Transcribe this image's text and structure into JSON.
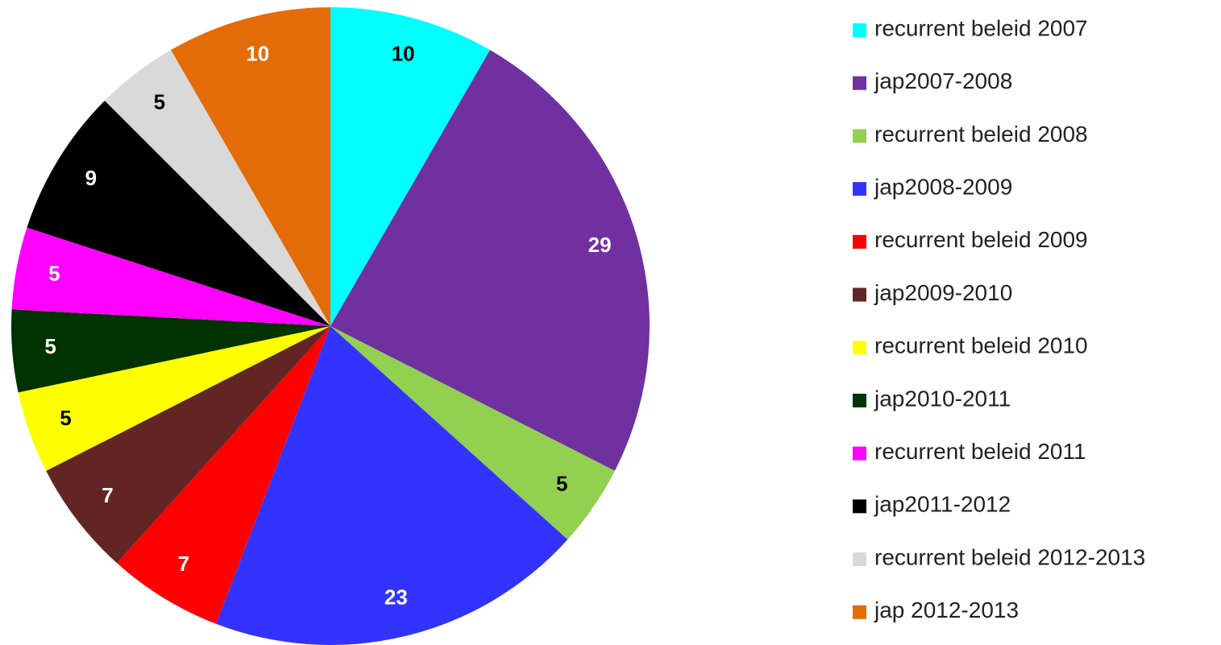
{
  "chart_data": {
    "type": "pie",
    "categories": [
      "recurrent beleid 2007",
      "jap2007-2008",
      "recurrent beleid 2008",
      "jap2008-2009",
      "recurrent beleid 2009",
      "jap2009-2010",
      "recurrent beleid 2010",
      "jap2010-2011",
      "recurrent beleid 2011",
      "jap2011-2012",
      "recurrent beleid 2012-2013",
      "jap 2012-2013"
    ],
    "values": [
      10,
      29,
      5,
      23,
      7,
      7,
      5,
      5,
      5,
      9,
      5,
      10
    ],
    "colors": [
      "#00ffff",
      "#7030a0",
      "#92d050",
      "#3333ff",
      "#ff0000",
      "#632523",
      "#ffff00",
      "#003300",
      "#ff00ff",
      "#000000",
      "#d9d9d9",
      "#e36c09"
    ],
    "legend": "right"
  }
}
